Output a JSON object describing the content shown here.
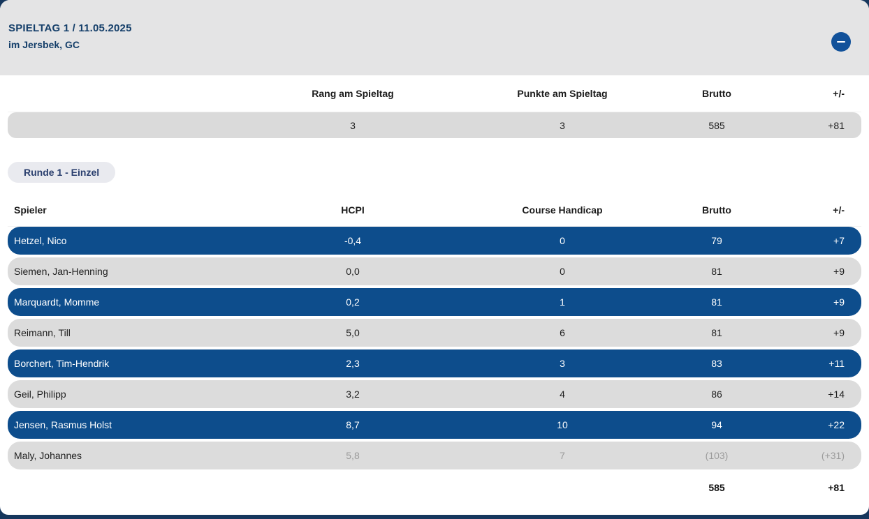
{
  "header": {
    "title": "SPIELTAG 1 / 11.05.2025",
    "subtitle": "im Jersbek, GC",
    "collapse_icon": "minus-icon"
  },
  "summary_table": {
    "columns": [
      "",
      "Rang am Spieltag",
      "Punkte am Spieltag",
      "Brutto",
      "+/-"
    ],
    "row": {
      "rang": "3",
      "punkte": "3",
      "brutto": "585",
      "diff": "+81"
    }
  },
  "round_badge": "Runde 1 - Einzel",
  "players_table": {
    "columns": [
      "Spieler",
      "HCPI",
      "Course Handicap",
      "Brutto",
      "+/-"
    ],
    "rows": [
      {
        "name": "Hetzel, Nico",
        "hcpi": "-0,4",
        "course_handicap": "0",
        "brutto": "79",
        "diff": "+7",
        "highlighted": true,
        "muted_values": false
      },
      {
        "name": "Siemen, Jan-Henning",
        "hcpi": "0,0",
        "course_handicap": "0",
        "brutto": "81",
        "diff": "+9",
        "highlighted": false,
        "muted_values": false
      },
      {
        "name": "Marquardt, Momme",
        "hcpi": "0,2",
        "course_handicap": "1",
        "brutto": "81",
        "diff": "+9",
        "highlighted": true,
        "muted_values": false
      },
      {
        "name": "Reimann, Till",
        "hcpi": "5,0",
        "course_handicap": "6",
        "brutto": "81",
        "diff": "+9",
        "highlighted": false,
        "muted_values": false
      },
      {
        "name": "Borchert, Tim-Hendrik",
        "hcpi": "2,3",
        "course_handicap": "3",
        "brutto": "83",
        "diff": "+11",
        "highlighted": true,
        "muted_values": false
      },
      {
        "name": "Geil, Philipp",
        "hcpi": "3,2",
        "course_handicap": "4",
        "brutto": "86",
        "diff": "+14",
        "highlighted": false,
        "muted_values": false
      },
      {
        "name": "Jensen, Rasmus Holst",
        "hcpi": "8,7",
        "course_handicap": "10",
        "brutto": "94",
        "diff": "+22",
        "highlighted": true,
        "muted_values": false
      },
      {
        "name": "Maly, Johannes",
        "hcpi": "5,8",
        "course_handicap": "7",
        "brutto": "(103)",
        "diff": "(+31)",
        "highlighted": false,
        "muted_values": true
      }
    ],
    "totals": {
      "brutto": "585",
      "diff": "+81"
    }
  },
  "colors": {
    "page_background": "#16375d",
    "panel_header_gray": "#e4e4e5",
    "row_blue": "#0d4d8c",
    "row_gray": "#dcdcdc",
    "summary_gray": "#dadada",
    "title_navy": "#153f6a",
    "badge_bg": "#e9eaef",
    "badge_text": "#2a3f6e",
    "muted_text": "#9b9b9b",
    "button_blue": "#11519a"
  }
}
